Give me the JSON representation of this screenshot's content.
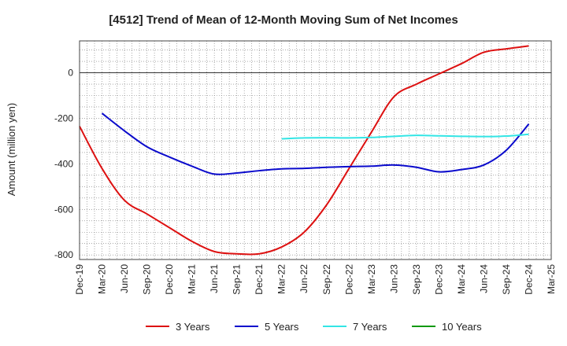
{
  "chart_data": {
    "type": "line",
    "title": "[4512]  Trend of Mean of 12-Month Moving Sum of Net Incomes",
    "ylabel": "Amount (million yen)",
    "xlabel": "",
    "ylim": [
      -820,
      140
    ],
    "yticks": [
      0,
      -200,
      -400,
      -600,
      -800
    ],
    "xtick_labels": [
      "Dec-19",
      "Mar-20",
      "Jun-20",
      "Sep-20",
      "Dec-20",
      "Mar-21",
      "Jun-21",
      "Sep-21",
      "Dec-21",
      "Mar-22",
      "Jun-22",
      "Sep-22",
      "Dec-22",
      "Mar-23",
      "Jun-23",
      "Sep-23",
      "Dec-23",
      "Mar-24",
      "Jun-24",
      "Sep-24",
      "Dec-24",
      "Mar-25"
    ],
    "grid": true,
    "legend_position": "bottom",
    "series": [
      {
        "name": "3 Years",
        "color": "#dd1111",
        "points": [
          [
            0,
            -235
          ],
          [
            1,
            -420
          ],
          [
            2,
            -560
          ],
          [
            3,
            -620
          ],
          [
            4,
            -680
          ],
          [
            5,
            -740
          ],
          [
            6,
            -785
          ],
          [
            7,
            -795
          ],
          [
            8,
            -795
          ],
          [
            9,
            -765
          ],
          [
            10,
            -700
          ],
          [
            11,
            -580
          ],
          [
            12,
            -420
          ],
          [
            13,
            -260
          ],
          [
            14,
            -105
          ],
          [
            15,
            -50
          ],
          [
            16,
            -5
          ],
          [
            17,
            40
          ],
          [
            18,
            90
          ],
          [
            19,
            105
          ],
          [
            20,
            118
          ]
        ]
      },
      {
        "name": "5 Years",
        "color": "#0a0acc",
        "points": [
          [
            1,
            -178
          ],
          [
            2,
            -255
          ],
          [
            3,
            -325
          ],
          [
            4,
            -370
          ],
          [
            5,
            -410
          ],
          [
            6,
            -445
          ],
          [
            7,
            -440
          ],
          [
            8,
            -430
          ],
          [
            9,
            -422
          ],
          [
            10,
            -420
          ],
          [
            11,
            -415
          ],
          [
            12,
            -412
          ],
          [
            13,
            -410
          ],
          [
            14,
            -405
          ],
          [
            15,
            -415
          ],
          [
            16,
            -435
          ],
          [
            17,
            -425
          ],
          [
            18,
            -405
          ],
          [
            19,
            -340
          ],
          [
            20,
            -225
          ]
        ]
      },
      {
        "name": "7 Years",
        "color": "#33e5e5",
        "points": [
          [
            9,
            -290
          ],
          [
            10,
            -286
          ],
          [
            11,
            -285
          ],
          [
            12,
            -286
          ],
          [
            13,
            -284
          ],
          [
            14,
            -279
          ],
          [
            15,
            -275
          ],
          [
            16,
            -277
          ],
          [
            17,
            -279
          ],
          [
            18,
            -280
          ],
          [
            19,
            -278
          ],
          [
            20,
            -270
          ]
        ]
      },
      {
        "name": "10 Years",
        "color": "#119911",
        "points": []
      }
    ]
  }
}
